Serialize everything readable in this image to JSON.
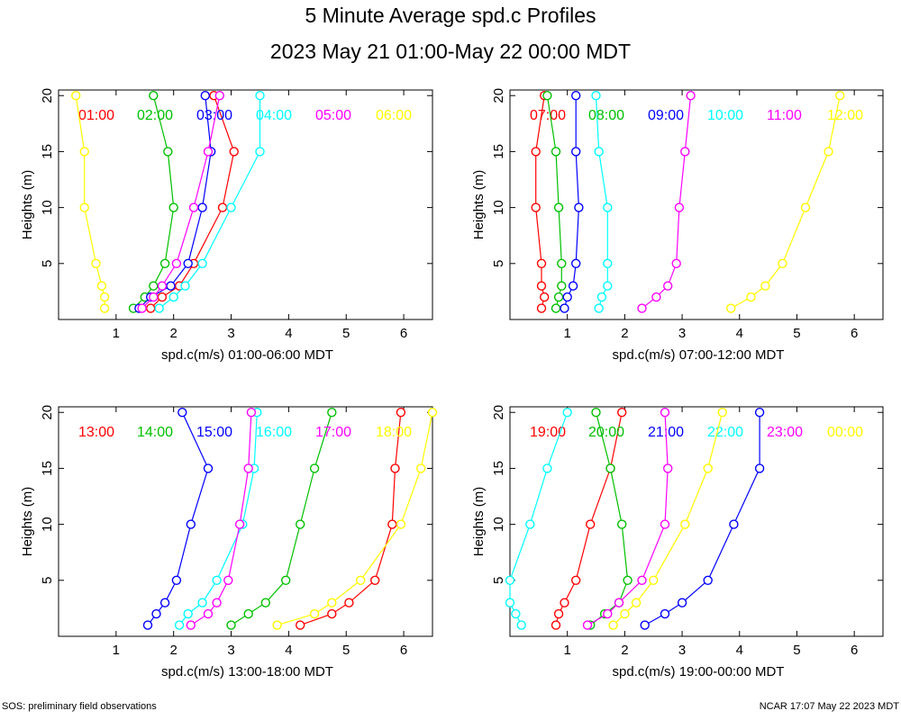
{
  "title_line1": "5 Minute Average spd.c Profiles",
  "title_line2": "2023 May 21 01:00-May 22 00:00 MDT",
  "footer_left": "SOS: preliminary field observations",
  "footer_right": "NCAR 17:07 May 22 2023 MDT",
  "chart_data": [
    {
      "type": "line",
      "xlabel": "spd.c(m/s) 01:00-06:00 MDT",
      "ylabel": "Heights (m)",
      "xlim": [
        0,
        6.5
      ],
      "ylim": [
        0,
        20.5
      ],
      "xticks": [
        1,
        2,
        3,
        4,
        5,
        6
      ],
      "yticks": [
        5,
        10,
        15,
        20
      ],
      "heights": [
        1,
        2,
        3,
        5,
        10,
        15,
        20
      ],
      "series": [
        {
          "name": "01:00",
          "color": "#ff0000",
          "x": [
            1.6,
            1.8,
            2.1,
            2.35,
            2.85,
            3.05,
            2.7
          ]
        },
        {
          "name": "02:00",
          "color": "#00c000",
          "x": [
            1.3,
            1.5,
            1.65,
            1.85,
            2.0,
            1.9,
            1.65
          ]
        },
        {
          "name": "03:00",
          "color": "#0000ff",
          "x": [
            1.4,
            1.6,
            1.95,
            2.25,
            2.5,
            2.65,
            2.55
          ]
        },
        {
          "name": "04:00",
          "color": "#00ffff",
          "x": [
            1.75,
            2.0,
            2.2,
            2.5,
            3.0,
            3.5,
            3.5
          ]
        },
        {
          "name": "05:00",
          "color": "#ff00ff",
          "x": [
            1.45,
            1.65,
            1.8,
            2.05,
            2.35,
            2.6,
            2.8
          ]
        },
        {
          "name": "06:00",
          "color": "#ffff00",
          "x": [
            0.8,
            0.8,
            0.75,
            0.65,
            0.45,
            0.45,
            0.3
          ]
        }
      ]
    },
    {
      "type": "line",
      "xlabel": "spd.c(m/s) 07:00-12:00 MDT",
      "ylabel": "Heights (m)",
      "xlim": [
        0,
        6.5
      ],
      "ylim": [
        0,
        20.5
      ],
      "xticks": [
        1,
        2,
        3,
        4,
        5,
        6
      ],
      "yticks": [
        5,
        10,
        15,
        20
      ],
      "heights": [
        1,
        2,
        3,
        5,
        10,
        15,
        20
      ],
      "series": [
        {
          "name": "07:00",
          "color": "#ff0000",
          "x": [
            0.55,
            0.6,
            0.55,
            0.55,
            0.45,
            0.45,
            0.6
          ]
        },
        {
          "name": "08:00",
          "color": "#00c000",
          "x": [
            0.8,
            0.85,
            0.9,
            0.9,
            0.85,
            0.8,
            0.65
          ]
        },
        {
          "name": "09:00",
          "color": "#0000ff",
          "x": [
            0.95,
            1.0,
            1.1,
            1.15,
            1.2,
            1.15,
            1.15
          ]
        },
        {
          "name": "10:00",
          "color": "#00ffff",
          "x": [
            1.55,
            1.6,
            1.7,
            1.7,
            1.7,
            1.55,
            1.5
          ]
        },
        {
          "name": "11:00",
          "color": "#ff00ff",
          "x": [
            2.3,
            2.55,
            2.75,
            2.9,
            2.95,
            3.05,
            3.15
          ]
        },
        {
          "name": "12:00",
          "color": "#ffff00",
          "x": [
            3.85,
            4.2,
            4.45,
            4.75,
            5.15,
            5.55,
            5.75
          ]
        }
      ]
    },
    {
      "type": "line",
      "xlabel": "spd.c(m/s) 13:00-18:00 MDT",
      "ylabel": "Heights (m)",
      "xlim": [
        0,
        6.5
      ],
      "ylim": [
        0,
        20.5
      ],
      "xticks": [
        1,
        2,
        3,
        4,
        5,
        6
      ],
      "yticks": [
        5,
        10,
        15,
        20
      ],
      "heights": [
        1,
        2,
        3,
        5,
        10,
        15,
        20
      ],
      "series": [
        {
          "name": "13:00",
          "color": "#ff0000",
          "x": [
            4.2,
            4.75,
            5.05,
            5.5,
            5.8,
            5.85,
            5.95
          ]
        },
        {
          "name": "14:00",
          "color": "#00c000",
          "x": [
            3.0,
            3.3,
            3.6,
            3.95,
            4.2,
            4.45,
            4.75
          ]
        },
        {
          "name": "15:00",
          "color": "#0000ff",
          "x": [
            1.55,
            1.7,
            1.85,
            2.05,
            2.3,
            2.6,
            2.15
          ]
        },
        {
          "name": "16:00",
          "color": "#00ffff",
          "x": [
            2.1,
            2.25,
            2.5,
            2.75,
            3.2,
            3.4,
            3.45
          ]
        },
        {
          "name": "17:00",
          "color": "#ff00ff",
          "x": [
            2.3,
            2.6,
            2.75,
            2.95,
            3.15,
            3.3,
            3.35
          ]
        },
        {
          "name": "18:00",
          "color": "#ffff00",
          "x": [
            3.8,
            4.45,
            4.75,
            5.25,
            5.95,
            6.3,
            6.5
          ]
        }
      ]
    },
    {
      "type": "line",
      "xlabel": "spd.c(m/s) 19:00-00:00 MDT",
      "ylabel": "Heights (m)",
      "xlim": [
        0,
        6.5
      ],
      "ylim": [
        0,
        20.5
      ],
      "xticks": [
        1,
        2,
        3,
        4,
        5,
        6
      ],
      "yticks": [
        5,
        10,
        15,
        20
      ],
      "heights": [
        1,
        2,
        3,
        5,
        10,
        15,
        20
      ],
      "series": [
        {
          "name": "19:00",
          "color": "#ff0000",
          "x": [
            0.8,
            0.85,
            0.95,
            1.15,
            1.4,
            1.75,
            1.95
          ]
        },
        {
          "name": "20:00",
          "color": "#00c000",
          "x": [
            1.4,
            1.65,
            1.9,
            2.05,
            1.95,
            1.75,
            1.5
          ]
        },
        {
          "name": "21:00",
          "color": "#0000ff",
          "x": [
            2.35,
            2.7,
            3.0,
            3.45,
            3.9,
            4.35,
            4.35
          ]
        },
        {
          "name": "22:00",
          "color": "#00ffff",
          "x": [
            0.2,
            0.1,
            0.0,
            0.0,
            0.35,
            0.65,
            1.0
          ]
        },
        {
          "name": "23:00",
          "color": "#ff00ff",
          "x": [
            1.35,
            1.7,
            1.9,
            2.3,
            2.7,
            2.75,
            2.7
          ]
        },
        {
          "name": "00:00",
          "color": "#ffff00",
          "x": [
            1.8,
            2.0,
            2.2,
            2.5,
            3.05,
            3.45,
            3.7
          ]
        }
      ]
    }
  ]
}
